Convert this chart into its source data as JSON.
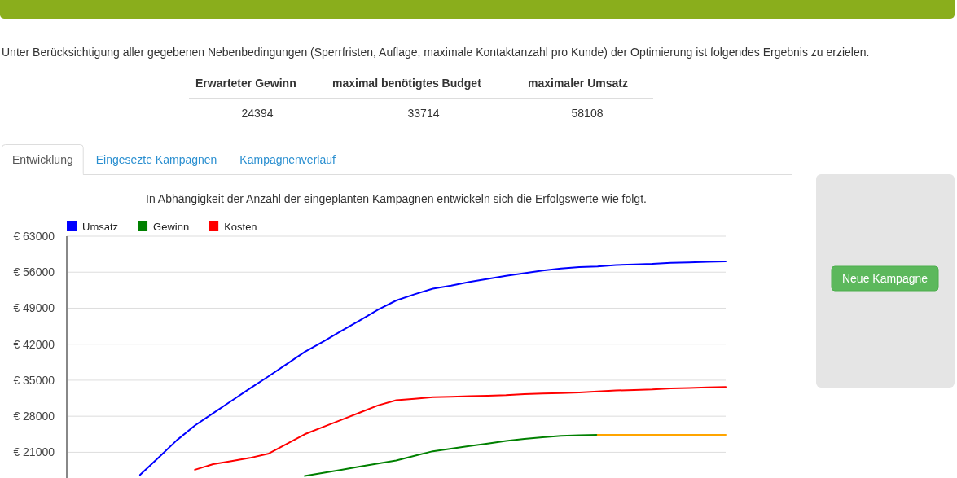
{
  "chart_data": {
    "type": "line",
    "title": "In Abhängigkeit der Anzahl der eingeplanten Kampagnen entwickeln sich die Erfolgswerte wie folgt.",
    "annotations": [
      "Unter Berücksichtigung aller gegebenen Nebenbedingungen (Sperrfristen, Auflage, maximale Kontaktanzahl pro Kunde) der Optimierung ist folgendes Ergebnis zu erzielen.",
      "Erwarteter Gewinn",
      "maximal benötigtes Budget",
      "maximaler Umsatz",
      "24394",
      "33714",
      "58108",
      "Entwicklung",
      "Eingesezte Kampagnen",
      "Kampagnenverlauf",
      "Neue Kampagne"
    ],
    "categories": [
      null,
      null,
      null,
      null,
      null,
      null,
      null,
      null,
      null,
      null,
      null,
      null,
      null,
      null,
      null,
      null,
      null,
      null,
      null,
      null,
      null,
      null,
      null,
      null,
      null,
      null,
      null,
      null,
      null,
      null,
      null,
      null,
      null,
      null,
      null,
      null,
      null
    ],
    "series": [
      {
        "name": "Umsatz",
        "color": "#0000ff",
        "values": [
          null,
          null,
          null,
          null,
          16600,
          19900,
          23300,
          26200,
          28600,
          31000,
          33400,
          35700,
          38100,
          40500,
          42500,
          44600,
          46600,
          48700,
          50500,
          51700,
          52800,
          53400,
          54100,
          54700,
          55300,
          55800,
          56300,
          56700,
          57000,
          57100,
          57400,
          57500,
          57600,
          57800,
          57900,
          58000,
          58100
        ]
      },
      {
        "name": "Gewinn",
        "color": "#008000",
        "values": [
          null,
          null,
          null,
          null,
          null,
          null,
          null,
          null,
          null,
          null,
          null,
          null,
          null,
          16400,
          17000,
          17600,
          18200,
          18800,
          19400,
          20300,
          21200,
          21700,
          22200,
          22700,
          23200,
          23600,
          23900,
          24200,
          24300,
          24400,
          null,
          null,
          null,
          null,
          null,
          null,
          null
        ]
      },
      {
        "name": "Kosten",
        "color": "#ff0000",
        "values": [
          null,
          null,
          null,
          null,
          null,
          null,
          null,
          17600,
          18700,
          19300,
          19900,
          20700,
          22600,
          24500,
          25900,
          27300,
          28700,
          30100,
          31100,
          31400,
          31700,
          31800,
          31900,
          32000,
          32100,
          32300,
          32400,
          32500,
          32600,
          32800,
          33000,
          33100,
          33200,
          33400,
          33500,
          33600,
          33700
        ]
      },
      {
        "color": "#ffa500",
        "values": [
          null,
          null,
          null,
          null,
          null,
          null,
          null,
          null,
          null,
          null,
          null,
          null,
          null,
          null,
          null,
          null,
          null,
          null,
          null,
          null,
          null,
          null,
          null,
          null,
          null,
          null,
          null,
          null,
          null,
          24400,
          24400,
          24400,
          24400,
          24400,
          24400,
          24400,
          24400
        ]
      }
    ],
    "ylim": [
      16000,
      63000
    ],
    "yticks": [
      {
        "value": 21000,
        "label": "€ 21000"
      },
      {
        "value": 28000,
        "label": "€ 28000"
      },
      {
        "value": 35000,
        "label": "€ 35000"
      },
      {
        "value": 42000,
        "label": "€ 42000"
      },
      {
        "value": 49000,
        "label": "€ 49000"
      },
      {
        "value": 56000,
        "label": "€ 56000"
      },
      {
        "value": 63000,
        "label": "€ 63000"
      }
    ],
    "grid": "y",
    "legend": "top left",
    "tick_labels": "y"
  }
}
